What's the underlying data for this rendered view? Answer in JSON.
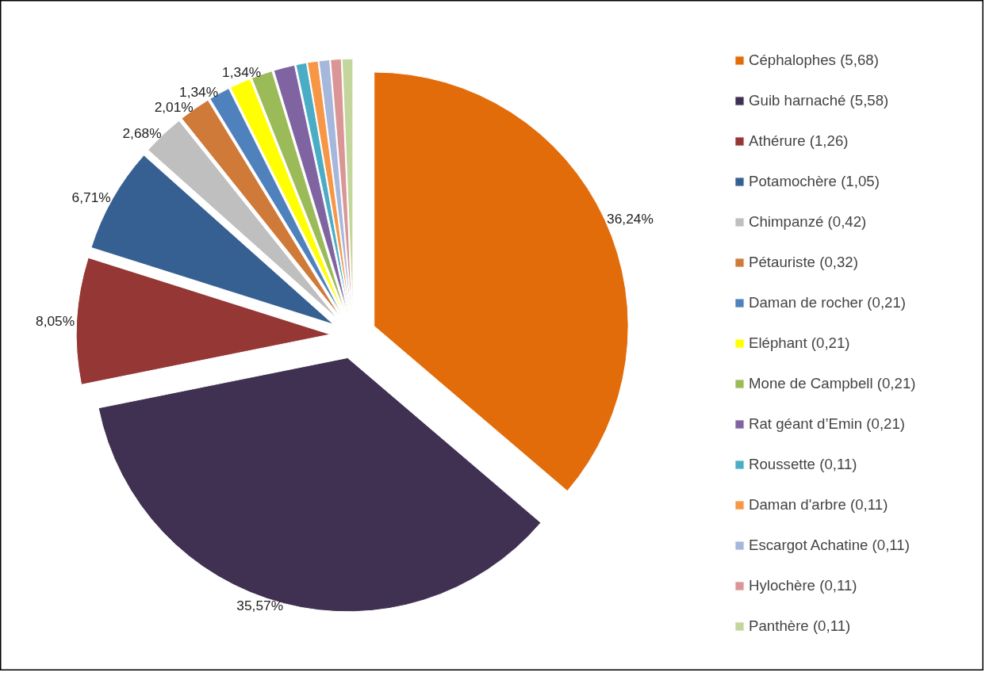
{
  "chart_data": {
    "type": "pie",
    "categories": [
      "Céphalophes (5,68)",
      "Guib harnaché (5,58)",
      "Athérure (1,26)",
      "Potamochère (1,05)",
      "Chimpanzé (0,42)",
      "Pétauriste (0,32)",
      "Daman de rocher (0,21)",
      "Eléphant (0,21)",
      "Mone de Campbell (0,21)",
      "Rat géant d’Emin (0,21)",
      "Roussette (0,11)",
      "Daman d'arbre (0,11)",
      "Escargot Achatine (0,11)",
      "Hylochère (0,11)",
      "Panthère (0,11)"
    ],
    "values": [
      36.24,
      35.57,
      8.05,
      6.71,
      2.68,
      2.01,
      1.34,
      1.34,
      1.34,
      1.34,
      0.67,
      0.67,
      0.67,
      0.67,
      0.67
    ],
    "colors": [
      "#e36c0a",
      "#403152",
      "#953735",
      "#366092",
      "#bfbfbf",
      "#d07a3a",
      "#4f81bd",
      "#ffff00",
      "#9bbb59",
      "#8064a2",
      "#4bacc6",
      "#f79646",
      "#a6b7dc",
      "#d99694",
      "#c3d69b"
    ],
    "value_labels": [
      "36,24%",
      "35,57%",
      "8,05%",
      "6,71%",
      "2,68%",
      "2,01%",
      "1,34%",
      null,
      "1,34%",
      null,
      null,
      null,
      null,
      null,
      null
    ],
    "legend": "right"
  }
}
